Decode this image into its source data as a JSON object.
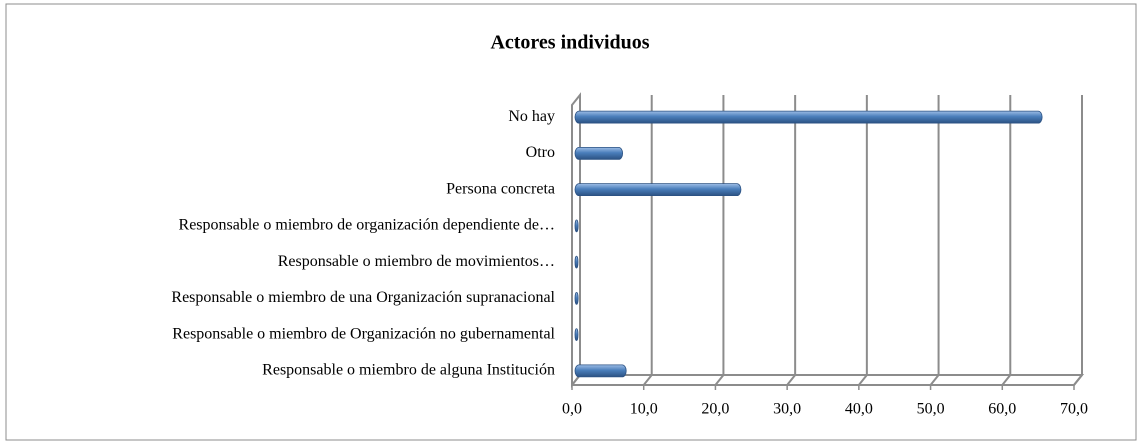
{
  "chart_data": {
    "type": "bar",
    "orientation": "horizontal",
    "title": "Actores individuos",
    "categories": [
      "No hay",
      "Otro",
      "Persona concreta",
      "Responsable  o miembro de organización dependiente de…",
      "Responsable  o miembro de movimientos…",
      "Responsable  o miembro de una Organización supranacional",
      "Responsable  o miembro de Organización no gubernamental",
      "Responsable o miembro de alguna Institución"
    ],
    "values": [
      65,
      6.5,
      23,
      0.3,
      0.2,
      0.3,
      0.2,
      7
    ],
    "color": "#4a7ebb",
    "xlim": [
      0,
      70
    ],
    "xticks": [
      {
        "value": 0,
        "label": "0,0"
      },
      {
        "value": 10,
        "label": "10,0"
      },
      {
        "value": 20,
        "label": "20,0"
      },
      {
        "value": 30,
        "label": "30,0"
      },
      {
        "value": 40,
        "label": "40,0"
      },
      {
        "value": 50,
        "label": "50,0"
      },
      {
        "value": 60,
        "label": "60,0"
      },
      {
        "value": 70,
        "label": "70,0"
      }
    ],
    "grid": true
  }
}
